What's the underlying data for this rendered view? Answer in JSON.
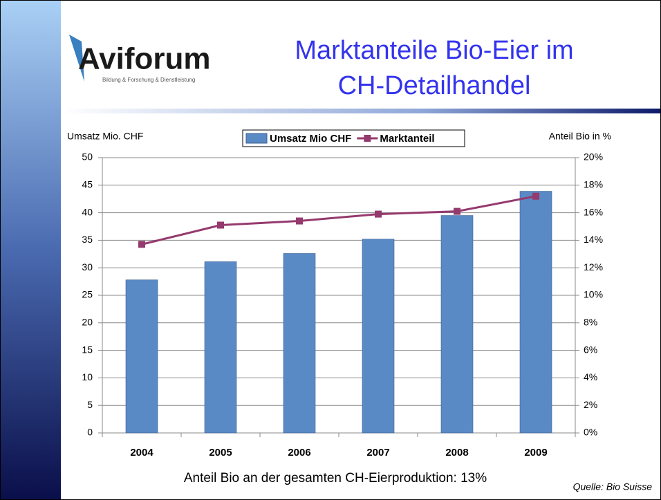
{
  "logo": {
    "name": "Aviforum",
    "tagline": "Bildung & Forschung & Dienstleistung"
  },
  "footnote": "Anteil Bio an der gesamten CH-Eierproduktion: 13%",
  "source": "Quelle: Bio Suisse",
  "chart_data": {
    "type": "bar",
    "title": [
      "Marktanteile Bio-Eier im",
      "CH-Detailhandel"
    ],
    "y_label": "Umsatz Mio. CHF",
    "y2_label": "Anteil Bio in %",
    "categories": [
      "2004",
      "2005",
      "2006",
      "2007",
      "2008",
      "2009"
    ],
    "series": [
      {
        "name": "Umsatz Mio CHF",
        "color": "#5a8ac6",
        "type": "bar",
        "values": [
          27.8,
          31.1,
          32.6,
          35.2,
          39.5,
          43.9
        ]
      },
      {
        "name": "Marktanteil",
        "color": "#953a6e",
        "type": "line",
        "axis": "y2",
        "values": [
          13.7,
          15.1,
          15.4,
          15.9,
          16.1,
          17.2
        ]
      }
    ],
    "ylim": [
      0,
      50
    ],
    "yticks": [
      0,
      5,
      10,
      15,
      20,
      25,
      30,
      35,
      40,
      45,
      50
    ],
    "y2lim": [
      0,
      20
    ],
    "y2ticks": [
      {
        "value": 0,
        "label": "0%"
      },
      {
        "value": 2,
        "label": "2%"
      },
      {
        "value": 4,
        "label": "4%"
      },
      {
        "value": 6,
        "label": "6%"
      },
      {
        "value": 8,
        "label": "8%"
      },
      {
        "value": 10,
        "label": "10%"
      },
      {
        "value": 12,
        "label": "12%"
      },
      {
        "value": 14,
        "label": "14%"
      },
      {
        "value": 16,
        "label": "16%"
      },
      {
        "value": 18,
        "label": "18%"
      },
      {
        "value": 20,
        "label": "20%"
      }
    ],
    "grid": true,
    "legend": "top"
  }
}
